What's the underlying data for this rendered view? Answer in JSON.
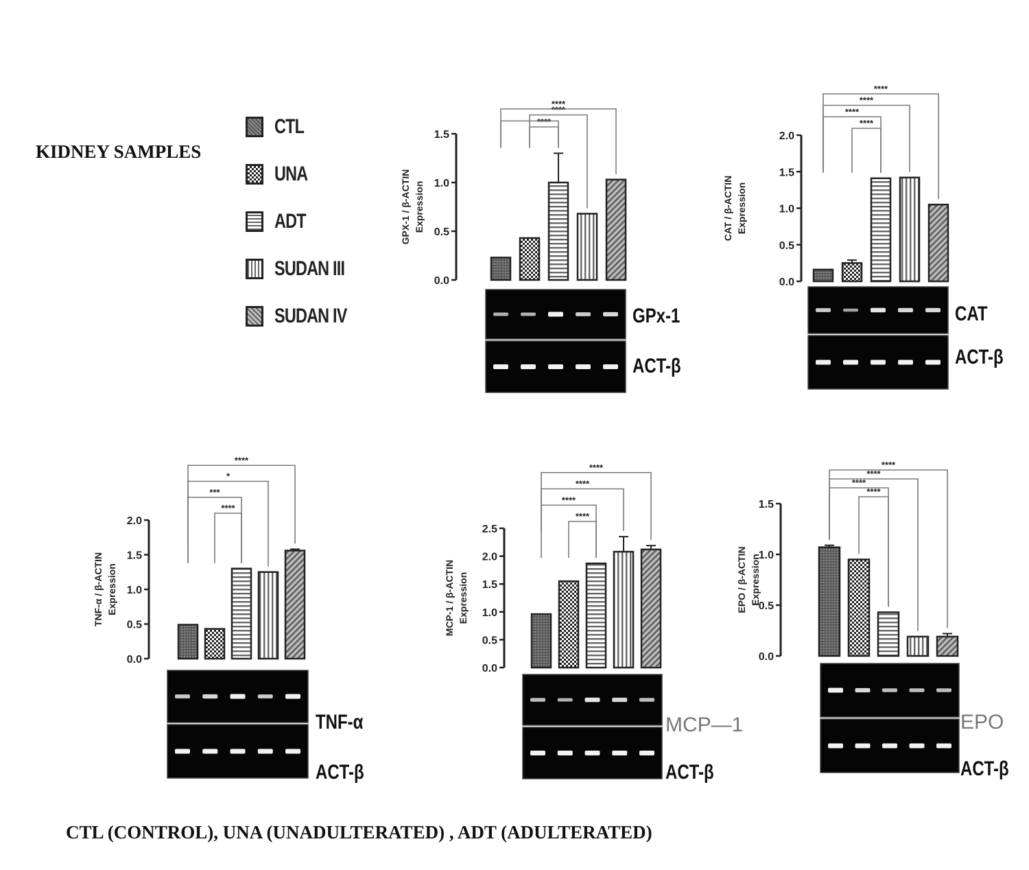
{
  "figure_title": "KIDNEY SAMPLES",
  "footnote": "CTL (CONTROL), UNA (UNADULTERATED) , ADT (ADULTERATED)",
  "legend": [
    {
      "label": "CTL",
      "pattern": "dense-dots"
    },
    {
      "label": "UNA",
      "pattern": "checker"
    },
    {
      "label": "ADT",
      "pattern": "horizontal-lines"
    },
    {
      "label": "SUDAN III",
      "pattern": "vertical-lines"
    },
    {
      "label": "SUDAN IV",
      "pattern": "diagonal-lines"
    }
  ],
  "colors": {
    "bar_dark": "#555555",
    "bar_mid": "#8a8a8a",
    "gel_background": "#050505",
    "band": "#f2f2f2",
    "bracket": "#7a7a7a"
  },
  "chart_data": [
    {
      "type": "bar",
      "ylabel": "GPX-1 / β-ACTIN Expression",
      "categories": [
        "CTL",
        "UNA",
        "ADT",
        "SUDAN III",
        "SUDAN IV"
      ],
      "values": [
        0.23,
        0.43,
        1.0,
        0.68,
        1.03
      ],
      "errors": [
        0,
        0,
        0.3,
        0,
        0
      ],
      "ylim": [
        0,
        1.5
      ],
      "yticks": [
        "0.0",
        "0.5",
        "1.0",
        "1.5"
      ],
      "significance": [
        {
          "from": "CTL",
          "to": "ADT",
          "label": "",
          "joined": true
        },
        {
          "from": "UNA",
          "to": "ADT",
          "label": "****"
        },
        {
          "from": "UNA",
          "to": "SUDAN III",
          "label": "****"
        },
        {
          "from": "CTL",
          "to": "SUDAN IV",
          "label": "****",
          "joined": true
        }
      ],
      "gel": [
        {
          "label": "GPx-1",
          "bands": [
            0.5,
            0.5,
            1.0,
            0.7,
            0.8
          ]
        },
        {
          "label": "ACT-β",
          "bands": [
            1,
            1,
            1,
            1,
            1
          ]
        }
      ]
    },
    {
      "type": "bar",
      "ylabel": "CAT / β-ACTIN Expression",
      "categories": [
        "CTL",
        "UNA",
        "ADT",
        "SUDAN III",
        "SUDAN IV"
      ],
      "values": [
        0.16,
        0.25,
        1.41,
        1.42,
        1.05
      ],
      "errors": [
        0,
        0.04,
        0,
        0,
        0
      ],
      "ylim": [
        0,
        2.0
      ],
      "yticks": [
        "0.0",
        "0.5",
        "1.0",
        "1.5",
        "2.0"
      ],
      "significance": [
        {
          "from": "CTL",
          "to": "ADT",
          "label": "****"
        },
        {
          "from": "UNA",
          "to": "ADT",
          "label": "****"
        },
        {
          "from": "CTL",
          "to": "SUDAN III",
          "label": "****",
          "joined": true
        },
        {
          "from": "CTL",
          "to": "SUDAN IV",
          "label": "****",
          "joined": true
        }
      ],
      "gel": [
        {
          "label": "CAT",
          "bands": [
            0.7,
            0.4,
            0.9,
            0.8,
            0.8
          ]
        },
        {
          "label": "ACT-β",
          "bands": [
            1,
            1,
            1,
            1,
            1
          ]
        }
      ]
    },
    {
      "type": "bar",
      "ylabel": "TNF-α / β-ACTIN Expression",
      "categories": [
        "CTL",
        "UNA",
        "ADT",
        "SUDAN III",
        "SUDAN IV"
      ],
      "values": [
        0.49,
        0.43,
        1.3,
        1.25,
        1.56
      ],
      "errors": [
        0,
        0,
        0,
        0,
        0.02
      ],
      "ylim": [
        0,
        2.0
      ],
      "yticks": [
        "0.0",
        "0.5",
        "1.0",
        "1.5",
        "2.0"
      ],
      "significance": [
        {
          "from": "UNA",
          "to": "ADT",
          "label": "****"
        },
        {
          "from": "CTL",
          "to": "ADT",
          "label": "***"
        },
        {
          "from": "CTL",
          "to": "SUDAN III",
          "label": "*",
          "joined": true
        },
        {
          "from": "CTL",
          "to": "SUDAN IV",
          "label": "****",
          "joined": true
        }
      ],
      "gel": [
        {
          "label": "TNF-α",
          "bands": [
            0.7,
            0.8,
            1.0,
            0.7,
            1.0
          ]
        },
        {
          "label": "ACT-β",
          "bands": [
            1,
            1,
            1,
            1,
            1
          ]
        }
      ]
    },
    {
      "type": "bar",
      "ylabel": "MCP-1 / β-ACTIN Expression",
      "categories": [
        "CTL",
        "UNA",
        "ADT",
        "SUDAN III",
        "SUDAN IV"
      ],
      "values": [
        0.96,
        1.55,
        1.87,
        2.08,
        2.12
      ],
      "errors": [
        0,
        0,
        0,
        0.27,
        0.07
      ],
      "ylim": [
        0,
        2.5
      ],
      "yticks": [
        "0.0",
        "0.5",
        "1.0",
        "1.5",
        "2.0",
        "2.5"
      ],
      "significance": [
        {
          "from": "UNA",
          "to": "ADT",
          "label": "****"
        },
        {
          "from": "CTL",
          "to": "ADT",
          "label": "****"
        },
        {
          "from": "CTL",
          "to": "SUDAN III",
          "label": "****",
          "joined": true
        },
        {
          "from": "CTL",
          "to": "SUDAN IV",
          "label": "****",
          "joined": true
        }
      ],
      "gel": [
        {
          "label": "MCP—1",
          "bands": [
            0.6,
            0.5,
            0.9,
            0.8,
            0.6
          ]
        },
        {
          "label": "ACT-β",
          "bands": [
            1,
            1,
            1,
            1,
            1
          ]
        }
      ]
    },
    {
      "type": "bar",
      "ylabel": "EPO / β-ACTIN Expression",
      "categories": [
        "CTL",
        "UNA",
        "ADT",
        "SUDAN III",
        "SUDAN IV"
      ],
      "values": [
        1.07,
        0.95,
        0.43,
        0.19,
        0.19
      ],
      "errors": [
        0.02,
        0,
        0,
        0,
        0.03
      ],
      "ylim": [
        0,
        1.5
      ],
      "yticks": [
        "0.0",
        "0.5",
        "1.0",
        "1.5"
      ],
      "significance": [
        {
          "from": "UNA",
          "to": "ADT",
          "label": "****"
        },
        {
          "from": "CTL",
          "to": "ADT",
          "label": "****"
        },
        {
          "from": "CTL",
          "to": "SUDAN III",
          "label": "****",
          "joined": true
        },
        {
          "from": "CTL",
          "to": "SUDAN IV",
          "label": "****",
          "joined": true
        }
      ],
      "gel": [
        {
          "label": "EPO",
          "bands": [
            1.0,
            0.8,
            0.6,
            0.6,
            0.6
          ]
        },
        {
          "label": "ACT-β",
          "bands": [
            1,
            1,
            1,
            1,
            1
          ]
        }
      ]
    }
  ]
}
